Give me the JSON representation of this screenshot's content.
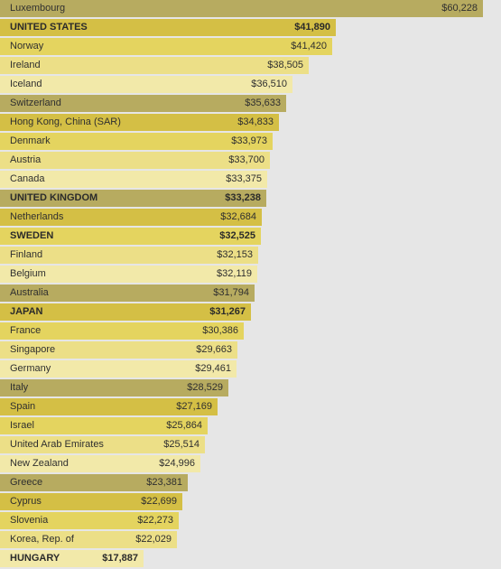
{
  "chart_data": {
    "type": "bar",
    "orientation": "horizontal",
    "categories": [
      "Luxembourg",
      "UNITED STATES",
      "Norway",
      "Ireland",
      "Iceland",
      "Switzerland",
      "Hong Kong, China (SAR)",
      "Denmark",
      "Austria",
      "Canada",
      "UNITED KINGDOM",
      "Netherlands",
      "SWEDEN",
      "Finland",
      "Belgium",
      "Australia",
      "JAPAN",
      "France",
      "Singapore",
      "Germany",
      "Italy",
      "Spain",
      "Israel",
      "United Arab Emirates",
      "New Zealand",
      "Greece",
      "Cyprus",
      "Slovenia",
      "Korea, Rep. of",
      "HUNGARY"
    ],
    "values": [
      60228,
      41890,
      41420,
      38505,
      36510,
      35633,
      34833,
      33973,
      33700,
      33375,
      33238,
      32684,
      32525,
      32153,
      32119,
      31794,
      31267,
      30386,
      29663,
      29461,
      28529,
      27169,
      25864,
      25514,
      24996,
      23381,
      22699,
      22273,
      22029,
      17887
    ],
    "value_labels": [
      "$60,228",
      "$41,890",
      "$41,420",
      "$38,505",
      "$36,510",
      "$35,633",
      "$34,833",
      "$33,973",
      "$33,700",
      "$33,375",
      "$33,238",
      "$32,684",
      "$32,525",
      "$32,153",
      "$32,119",
      "$31,794",
      "$31,267",
      "$30,386",
      "$29,663",
      "$29,461",
      "$28,529",
      "$27,169",
      "$25,864",
      "$25,514",
      "$24,996",
      "$23,381",
      "$22,699",
      "$22,273",
      "$22,029",
      "$17,887"
    ],
    "highlighted": [
      "UNITED STATES",
      "UNITED KINGDOM",
      "SWEDEN",
      "JAPAN",
      "HUNGARY"
    ],
    "bar_colors": [
      "#b7ab60",
      "#d4bf45",
      "#e4d45f",
      "#ecdf87",
      "#f2e9a9"
    ],
    "background_color": "#e6e6e6",
    "title": "",
    "xlabel": "",
    "ylabel": "",
    "xlim": [
      0,
      60228
    ],
    "grid": false,
    "legend": "none"
  }
}
